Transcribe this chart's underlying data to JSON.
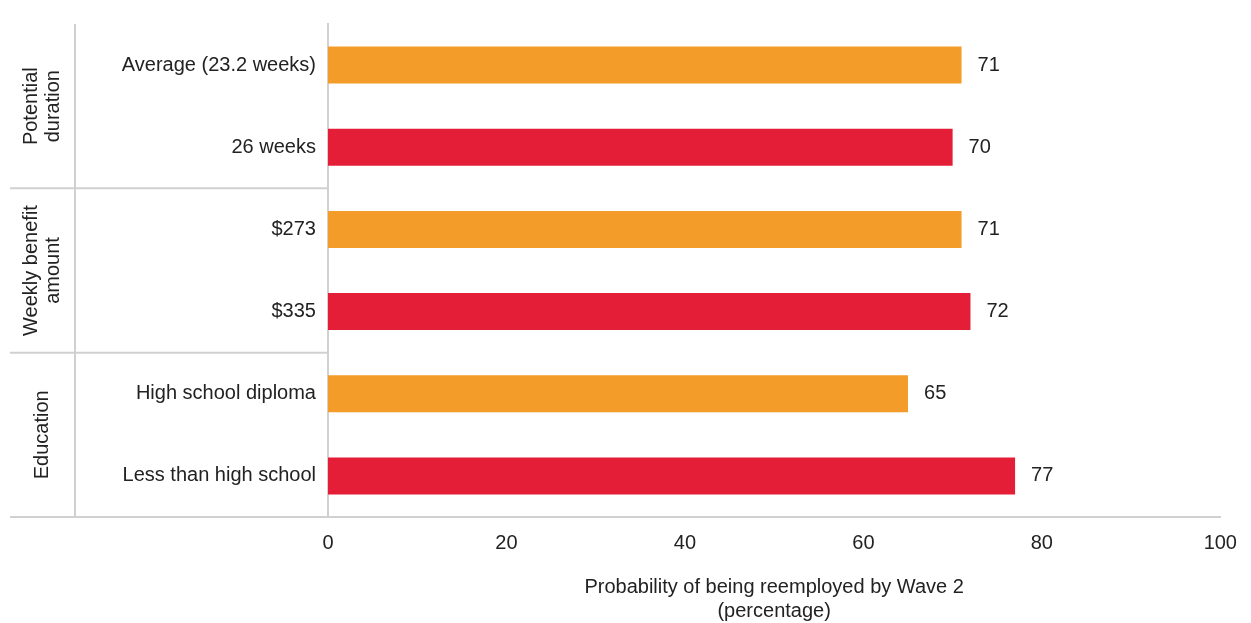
{
  "chart_data": {
    "type": "bar",
    "orientation": "horizontal",
    "categories": [
      "Average (23.2 weeks)",
      "26 weeks",
      "$273",
      "$335",
      "High school diploma",
      "Less than high school"
    ],
    "values": [
      71,
      70,
      71,
      72,
      65,
      77
    ],
    "colors": [
      "#f39c2a",
      "#e41e36",
      "#f39c2a",
      "#e41e36",
      "#f39c2a",
      "#e41e36"
    ],
    "xlabel": "Probability of being reemployed by Wave 2\n(percentage)",
    "xlim": [
      0,
      100
    ],
    "xticks": [
      0,
      20,
      40,
      60,
      80,
      100
    ],
    "annotations": [
      "Potential duration",
      "Weekly benefit amount",
      "Education"
    ],
    "data_labels": true,
    "grid": false,
    "legend": false
  }
}
